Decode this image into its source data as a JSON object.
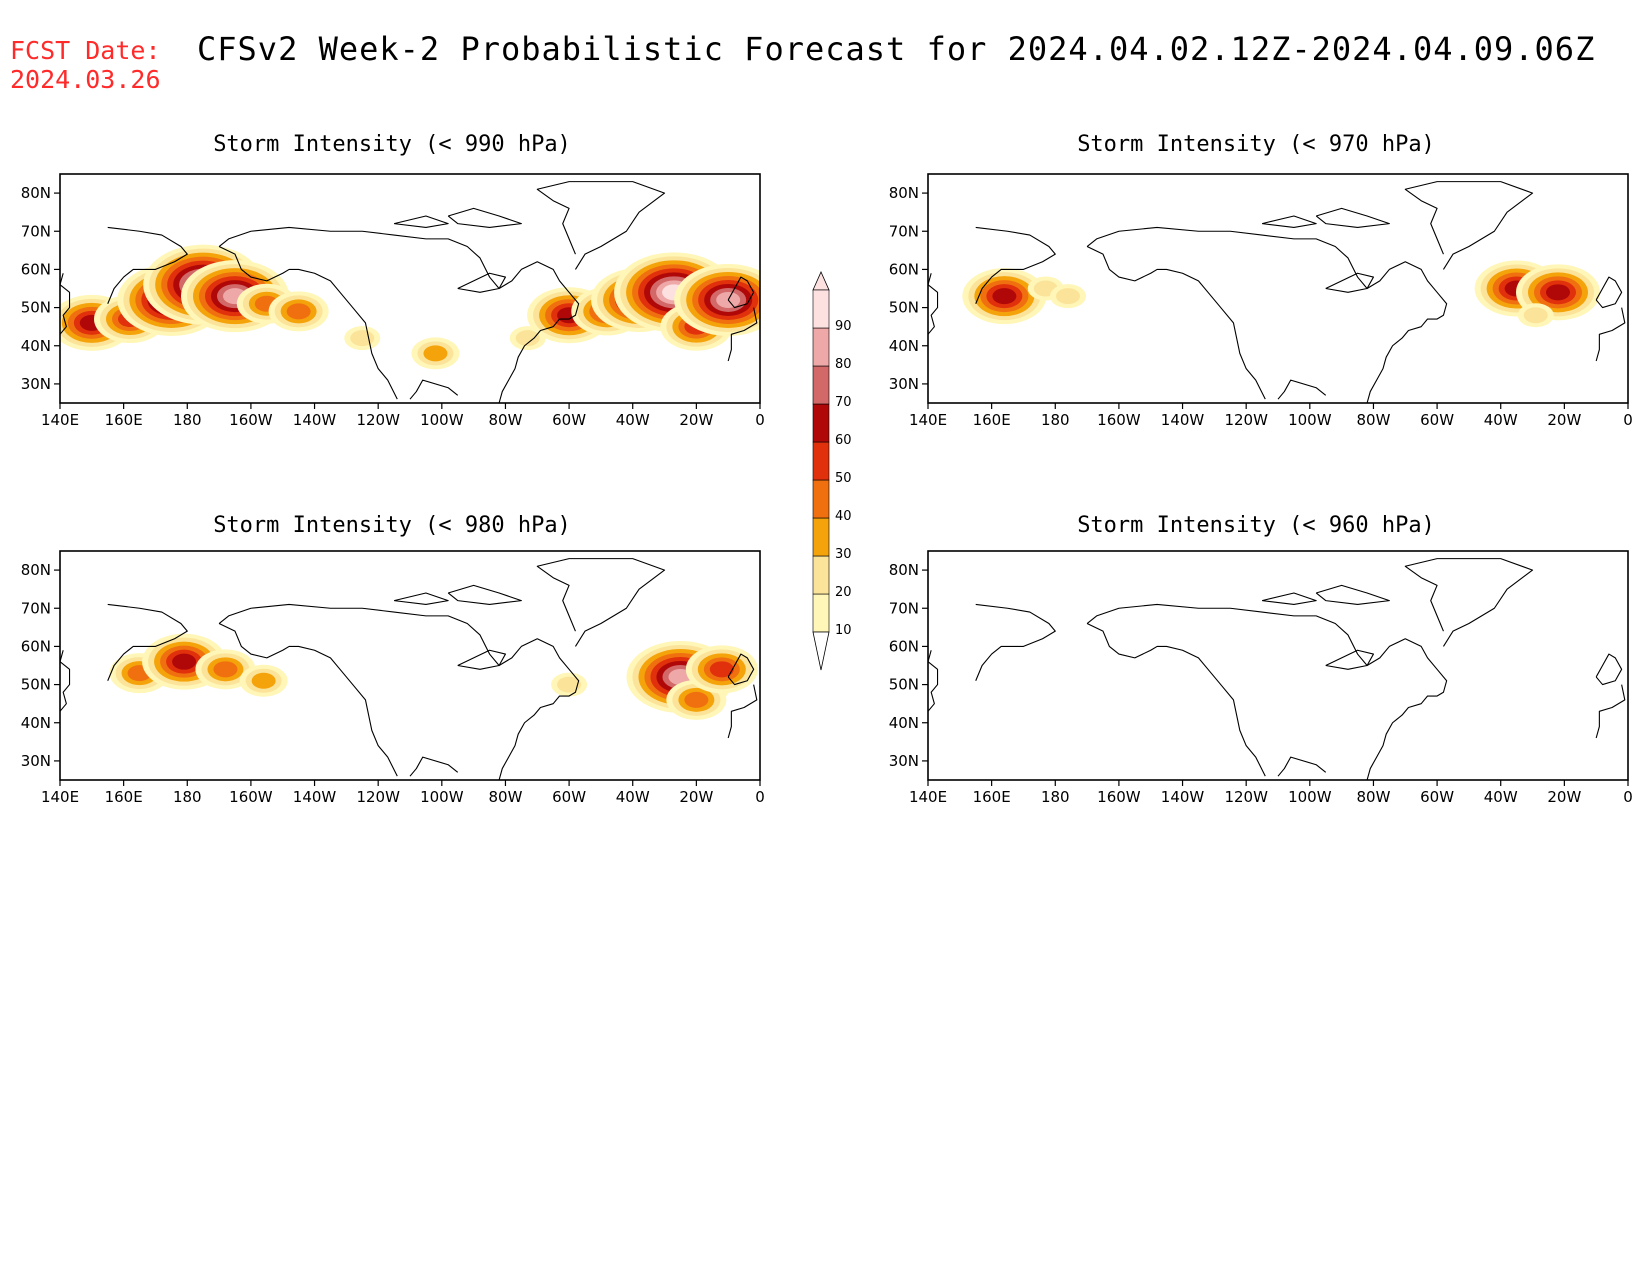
{
  "fcst_label": "FCST Date:",
  "fcst_date": "2024.03.26",
  "title": "CFSv2 Week-2 Probabilistic Forecast for 2024.04.02.12Z-2024.04.09.06Z",
  "lat_labels": [
    "80N",
    "70N",
    "60N",
    "50N",
    "40N",
    "30N"
  ],
  "lon_labels": [
    "140E",
    "160E",
    "180",
    "160W",
    "140W",
    "120W",
    "100W",
    "80W",
    "60W",
    "40W",
    "20W",
    "0"
  ],
  "colorbar": {
    "levels": [
      10,
      20,
      30,
      40,
      50,
      60,
      70,
      80,
      90
    ],
    "labels": [
      "10",
      "20",
      "30",
      "40",
      "50",
      "60",
      "70",
      "80",
      "90"
    ],
    "colors": [
      "#fff6b8",
      "#fbe49a",
      "#f5a30a",
      "#f07010",
      "#e0300c",
      "#b00808",
      "#d26868",
      "#eea8a8",
      "#fde0e0"
    ]
  },
  "panels": [
    {
      "id": "990",
      "title": "Storm Intensity (< 990 hPa)",
      "blobs": [
        {
          "lon": 150,
          "lat": 46,
          "level": 60
        },
        {
          "lon": 162,
          "lat": 47,
          "level": 50
        },
        {
          "lon": 175,
          "lat": 52,
          "level": 80
        },
        {
          "lon": 185,
          "lat": 56,
          "level": 90
        },
        {
          "lon": 195,
          "lat": 53,
          "level": 80
        },
        {
          "lon": 205,
          "lat": 51,
          "level": 40
        },
        {
          "lon": 215,
          "lat": 49,
          "level": 40
        },
        {
          "lon": 300,
          "lat": 48,
          "level": 60
        },
        {
          "lon": 312,
          "lat": 49,
          "level": 50
        },
        {
          "lon": 322,
          "lat": 52,
          "level": 70
        },
        {
          "lon": 333,
          "lat": 54,
          "level": 90
        },
        {
          "lon": 340,
          "lat": 45,
          "level": 50
        },
        {
          "lon": 350,
          "lat": 52,
          "level": 80
        },
        {
          "lon": 235,
          "lat": 42,
          "level": 20
        },
        {
          "lon": 258,
          "lat": 38,
          "level": 30
        },
        {
          "lon": 287,
          "lat": 42,
          "level": 20
        }
      ]
    },
    {
      "id": "970",
      "title": "Storm Intensity (< 970 hPa)",
      "blobs": [
        {
          "lon": 164,
          "lat": 53,
          "level": 60
        },
        {
          "lon": 177,
          "lat": 55,
          "level": 20
        },
        {
          "lon": 184,
          "lat": 53,
          "level": 20
        },
        {
          "lon": 325,
          "lat": 55,
          "level": 60
        },
        {
          "lon": 338,
          "lat": 54,
          "level": 60
        },
        {
          "lon": 331,
          "lat": 48,
          "level": 20
        }
      ]
    },
    {
      "id": "980",
      "title": "Storm Intensity (< 980 hPa)",
      "blobs": [
        {
          "lon": 165,
          "lat": 53,
          "level": 40
        },
        {
          "lon": 179,
          "lat": 56,
          "level": 60
        },
        {
          "lon": 192,
          "lat": 54,
          "level": 40
        },
        {
          "lon": 204,
          "lat": 51,
          "level": 30
        },
        {
          "lon": 300,
          "lat": 50,
          "level": 20
        },
        {
          "lon": 335,
          "lat": 52,
          "level": 80
        },
        {
          "lon": 340,
          "lat": 46,
          "level": 40
        },
        {
          "lon": 348,
          "lat": 54,
          "level": 50
        }
      ]
    },
    {
      "id": "960",
      "title": "Storm Intensity (< 960 hPa)",
      "blobs": []
    }
  ]
}
